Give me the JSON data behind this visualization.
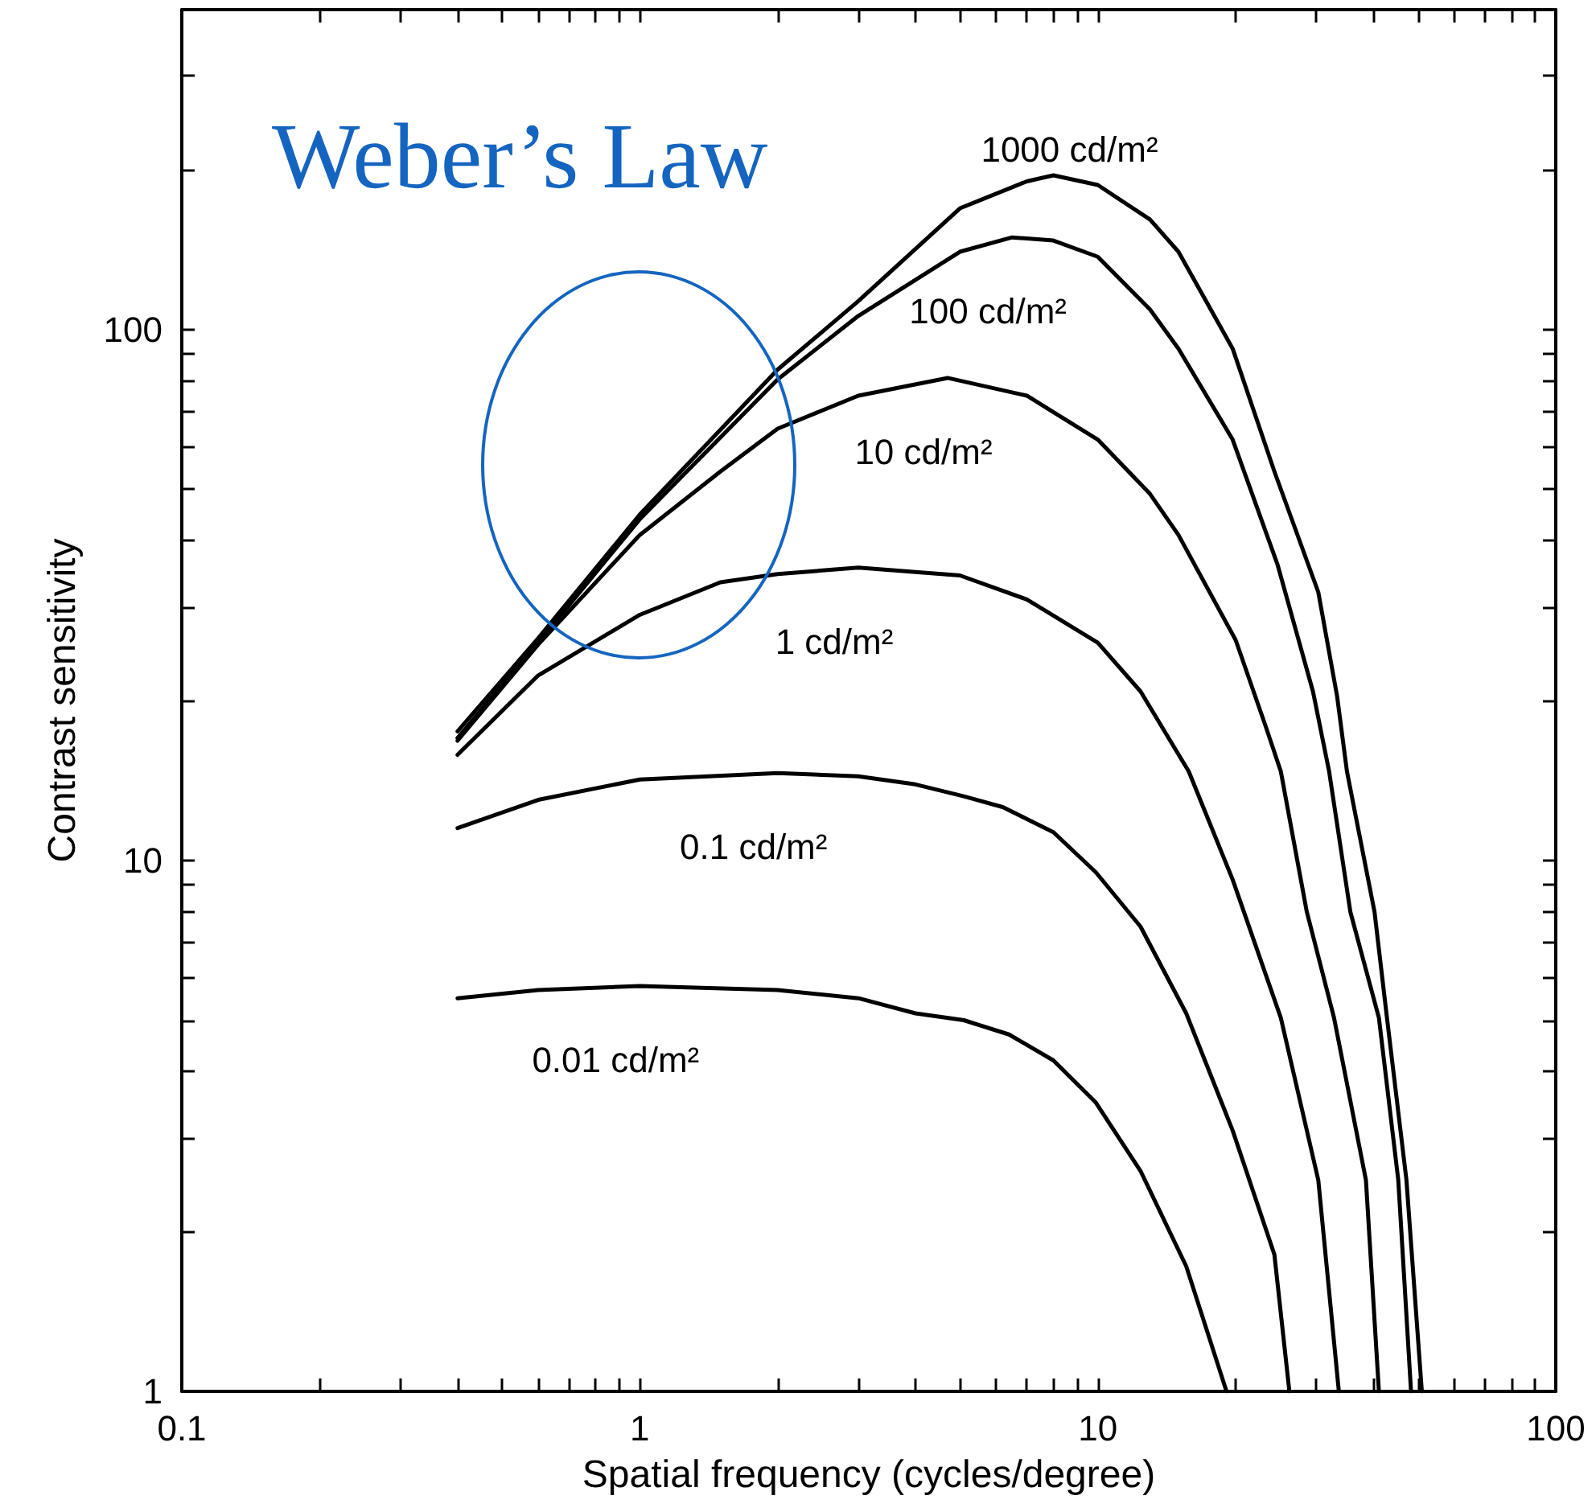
{
  "chart_data": {
    "type": "line",
    "xlabel": "Spatial frequency (cycles/degree)",
    "ylabel": "Contrast sensitivity",
    "log": "xy",
    "xlim": [
      0.1,
      100
    ],
    "ylim": [
      1,
      400
    ],
    "xticks": [
      0.1,
      1,
      10,
      100,
      {
        "value": 0.2,
        "label": null
      },
      {
        "value": 0.3,
        "label": null
      },
      {
        "value": 0.4,
        "label": null
      },
      {
        "value": 0.5,
        "label": null
      },
      {
        "value": 0.6,
        "label": null
      },
      {
        "value": 0.7,
        "label": null
      },
      {
        "value": 0.8,
        "label": null
      },
      {
        "value": 0.9,
        "label": null
      },
      {
        "value": 2,
        "label": null
      },
      {
        "value": 3,
        "label": null
      },
      {
        "value": 4,
        "label": null
      },
      {
        "value": 5,
        "label": null
      },
      {
        "value": 6,
        "label": null
      },
      {
        "value": 7,
        "label": null
      },
      {
        "value": 8,
        "label": null
      },
      {
        "value": 9,
        "label": null
      },
      {
        "value": 20,
        "label": null
      },
      {
        "value": 30,
        "label": null
      },
      {
        "value": 40,
        "label": null
      },
      {
        "value": 50,
        "label": null
      },
      {
        "value": 60,
        "label": null
      },
      {
        "value": 70,
        "label": null
      },
      {
        "value": 80,
        "label": null
      },
      {
        "value": 90,
        "label": null
      }
    ],
    "yticks": [
      1,
      10,
      100,
      {
        "value": 2,
        "label": null
      },
      {
        "value": 3,
        "label": null
      },
      {
        "value": 4,
        "label": null
      },
      {
        "value": 5,
        "label": null
      },
      {
        "value": 6,
        "label": null
      },
      {
        "value": 7,
        "label": null
      },
      {
        "value": 8,
        "label": null
      },
      {
        "value": 9,
        "label": null
      },
      {
        "value": 20,
        "label": null
      },
      {
        "value": 30,
        "label": null
      },
      {
        "value": 40,
        "label": null
      },
      {
        "value": 50,
        "label": null
      },
      {
        "value": 60,
        "label": null
      },
      {
        "value": 70,
        "label": null
      },
      {
        "value": 80,
        "label": null
      },
      {
        "value": 90,
        "label": null
      },
      {
        "value": 200,
        "label": null
      },
      {
        "value": 300,
        "label": null
      }
    ],
    "marker": "none",
    "line_style": "solid",
    "series": [
      {
        "name": "1000 cd/m²",
        "color": "#000000",
        "x": [
          0.4,
          0.6,
          1,
          2,
          3,
          5,
          7,
          8,
          10,
          13,
          15,
          19.7,
          24.3,
          30.3,
          33.3,
          35,
          40.2,
          42.8,
          47.2,
          51
        ],
        "values": [
          17.5,
          26.2,
          44.8,
          84,
          113,
          169,
          190,
          195,
          187,
          161,
          140,
          92,
          54,
          32,
          20.4,
          14.7,
          8,
          5.05,
          2.5,
          1
        ]
      },
      {
        "name": "100 cd/m²",
        "color": "#000000",
        "x": [
          0.4,
          0.6,
          1,
          2,
          3,
          5,
          6.5,
          8,
          10,
          13,
          15,
          19.7,
          24.7,
          29.5,
          32,
          35.6,
          41.1,
          45.3,
          48.3
        ],
        "values": [
          17,
          25.7,
          43.9,
          80.5,
          106,
          140,
          149,
          147,
          137,
          109,
          92,
          62,
          36,
          20.8,
          14.7,
          8,
          5.05,
          2.5,
          1
        ]
      },
      {
        "name": "10 cd/m²",
        "color": "#000000",
        "x": [
          0.4,
          0.6,
          1,
          1.5,
          2,
          3,
          4.7,
          7,
          10,
          13,
          15,
          20,
          23.2,
          25.1,
          28.6,
          32.8,
          38.5,
          41.1
        ],
        "values": [
          16.8,
          25.5,
          41,
          54,
          65,
          75,
          81,
          75,
          62,
          49,
          41,
          26,
          18,
          14.7,
          8,
          5.05,
          2.5,
          1
        ]
      },
      {
        "name": "1 cd/m²",
        "color": "#000000",
        "x": [
          0.4,
          0.6,
          1,
          1.5,
          2,
          3,
          5,
          7,
          10,
          12.4,
          15.8,
          19.7,
          25.1,
          30.3,
          33.6
        ],
        "values": [
          15.8,
          22.3,
          29,
          33.4,
          34.6,
          35.6,
          34.4,
          31,
          25.7,
          20.8,
          14.7,
          9.2,
          5.05,
          2.5,
          1
        ]
      },
      {
        "name": "0.1 cd/m²",
        "color": "#000000",
        "x": [
          0.4,
          0.6,
          1,
          2,
          3,
          4,
          5.1,
          6.2,
          8,
          9.9,
          12.4,
          15.6,
          19.7,
          24.3,
          26.2
        ],
        "values": [
          11.5,
          13,
          14.2,
          14.6,
          14.4,
          13.9,
          13.2,
          12.6,
          11.3,
          9.5,
          7.5,
          5.15,
          3.1,
          1.81,
          1
        ]
      },
      {
        "name": "0.01 cd/m²",
        "color": "#000000",
        "x": [
          0.4,
          0.6,
          1,
          2,
          3,
          4,
          5.1,
          6.4,
          8,
          9.9,
          12.4,
          15.6,
          19.1
        ],
        "values": [
          5.5,
          5.7,
          5.8,
          5.7,
          5.5,
          5.15,
          5,
          4.7,
          4.2,
          3.5,
          2.6,
          1.72,
          1
        ]
      }
    ],
    "annotations": [
      "Weber’s Law"
    ]
  }
}
